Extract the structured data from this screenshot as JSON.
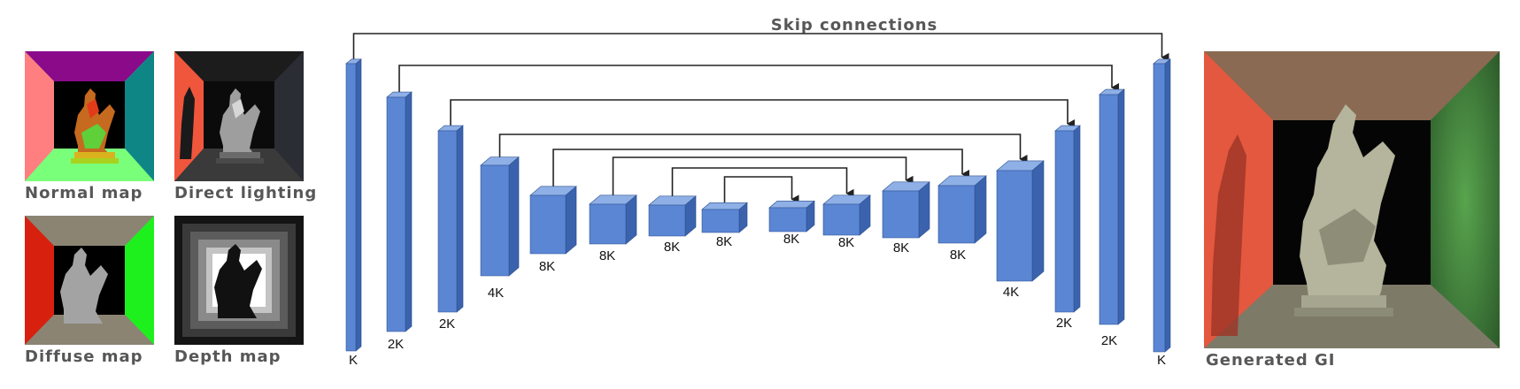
{
  "inputs": [
    {
      "label": "Normal map"
    },
    {
      "label": "Direct lighting"
    },
    {
      "label": "Diffuse map"
    },
    {
      "label": "Depth map"
    }
  ],
  "skip_title": "Skip connections",
  "layers": [
    {
      "label": "K"
    },
    {
      "label": "2K"
    },
    {
      "label": "2K"
    },
    {
      "label": "4K"
    },
    {
      "label": "8K"
    },
    {
      "label": "8K"
    },
    {
      "label": "8K"
    },
    {
      "label": "8K"
    },
    {
      "label": "8K"
    },
    {
      "label": "8K"
    },
    {
      "label": "8K"
    },
    {
      "label": "8K"
    },
    {
      "label": "4K"
    },
    {
      "label": "2K"
    },
    {
      "label": "2K"
    },
    {
      "label": "K"
    }
  ],
  "output": {
    "label": "Generated GI"
  },
  "colors": {
    "block_front": "#5a86d4",
    "block_top": "#8fb0e6",
    "block_side": "#3b63ad",
    "label_gray": "#575757",
    "arrow": "#222222"
  }
}
